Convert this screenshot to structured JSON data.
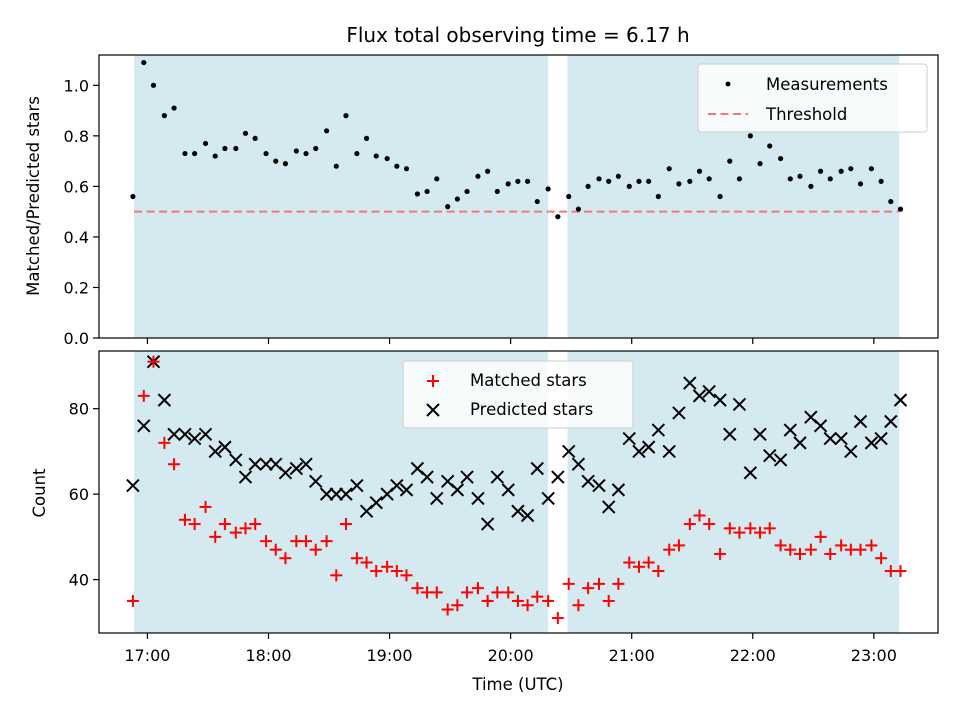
{
  "chart_data": {
    "title": "Flux total observing time = 6.17 h",
    "xlabel": "Time (UTC)",
    "x_ticks": [
      "17:00",
      "18:00",
      "19:00",
      "20:00",
      "21:00",
      "22:00",
      "23:00"
    ],
    "x_tick_hours": [
      17,
      18,
      19,
      20,
      21,
      22,
      23
    ],
    "xlim_hours": [
      16.6,
      23.53
    ],
    "shaded_intervals_hours": [
      [
        16.89,
        20.31
      ],
      [
        20.47,
        23.21
      ]
    ],
    "shade_color": "#d4eaf0",
    "panels": [
      {
        "type": "scatter",
        "ylabel": "Matched/Predicted stars",
        "ylim": [
          0,
          1.12
        ],
        "y_ticks": [
          "0.0",
          "0.2",
          "0.4",
          "0.6",
          "0.8",
          "1.0"
        ],
        "y_tick_values": [
          0,
          0.2,
          0.4,
          0.6,
          0.8,
          1.0
        ],
        "threshold": 0.5,
        "legend": [
          "Measurements",
          "Threshold"
        ],
        "colors": {
          "measurements": "#000000",
          "threshold": "#f07878"
        },
        "series": [
          {
            "name": "Measurements",
            "x_hours": [
              16.88,
              16.97,
              17.05,
              17.14,
              17.22,
              17.31,
              17.39,
              17.48,
              17.56,
              17.64,
              17.73,
              17.81,
              17.89,
              17.98,
              18.06,
              18.14,
              18.23,
              18.31,
              18.39,
              18.48,
              18.56,
              18.64,
              18.73,
              18.81,
              18.89,
              18.98,
              19.06,
              19.14,
              19.23,
              19.31,
              19.39,
              19.48,
              19.56,
              19.64,
              19.73,
              19.81,
              19.89,
              19.98,
              20.06,
              20.14,
              20.22,
              20.31,
              20.39,
              20.48,
              20.56,
              20.64,
              20.73,
              20.81,
              20.89,
              20.98,
              21.06,
              21.14,
              21.22,
              21.31,
              21.39,
              21.48,
              21.56,
              21.64,
              21.73,
              21.81,
              21.89,
              21.98,
              22.06,
              22.14,
              22.23,
              22.31,
              22.39,
              22.48,
              22.56,
              22.64,
              22.73,
              22.81,
              22.89,
              22.98,
              23.06,
              23.14,
              23.22
            ],
            "values": [
              0.56,
              1.09,
              1.0,
              0.88,
              0.91,
              0.73,
              0.73,
              0.77,
              0.72,
              0.75,
              0.75,
              0.81,
              0.79,
              0.73,
              0.7,
              0.69,
              0.74,
              0.73,
              0.75,
              0.82,
              0.68,
              0.88,
              0.73,
              0.79,
              0.72,
              0.71,
              0.68,
              0.67,
              0.57,
              0.58,
              0.63,
              0.52,
              0.55,
              0.58,
              0.64,
              0.66,
              0.58,
              0.61,
              0.62,
              0.62,
              0.54,
              0.59,
              0.48,
              0.56,
              0.51,
              0.6,
              0.63,
              0.62,
              0.64,
              0.6,
              0.62,
              0.62,
              0.56,
              0.67,
              0.61,
              0.62,
              0.66,
              0.63,
              0.56,
              0.7,
              0.63,
              0.8,
              0.69,
              0.76,
              0.71,
              0.63,
              0.64,
              0.6,
              0.66,
              0.63,
              0.66,
              0.67,
              0.61,
              0.67,
              0.62,
              0.54,
              0.51
            ]
          }
        ]
      },
      {
        "type": "scatter",
        "ylabel": "Count",
        "ylim": [
          27.5,
          93.5
        ],
        "y_ticks": [
          "40",
          "60",
          "80"
        ],
        "y_tick_values": [
          40,
          60,
          80
        ],
        "legend": [
          "Matched stars",
          "Predicted stars"
        ],
        "colors": {
          "matched": "#ff0000",
          "predicted": "#000000"
        },
        "series": [
          {
            "name": "Matched stars",
            "x_hours": [
              16.88,
              16.97,
              17.05,
              17.14,
              17.22,
              17.31,
              17.39,
              17.48,
              17.56,
              17.64,
              17.73,
              17.81,
              17.89,
              17.98,
              18.06,
              18.14,
              18.23,
              18.31,
              18.39,
              18.48,
              18.56,
              18.64,
              18.73,
              18.81,
              18.89,
              18.98,
              19.06,
              19.14,
              19.23,
              19.31,
              19.39,
              19.48,
              19.56,
              19.64,
              19.73,
              19.81,
              19.89,
              19.98,
              20.06,
              20.14,
              20.22,
              20.31,
              20.39,
              20.48,
              20.56,
              20.64,
              20.73,
              20.81,
              20.89,
              20.98,
              21.06,
              21.14,
              21.22,
              21.31,
              21.39,
              21.48,
              21.56,
              21.64,
              21.73,
              21.81,
              21.89,
              21.98,
              22.06,
              22.14,
              22.23,
              22.31,
              22.39,
              22.48,
              22.56,
              22.64,
              22.73,
              22.81,
              22.89,
              22.98,
              23.06,
              23.14,
              23.22
            ],
            "values": [
              35,
              83,
              91,
              72,
              67,
              54,
              53,
              57,
              50,
              53,
              51,
              52,
              53,
              49,
              47,
              45,
              49,
              49,
              47,
              49,
              41,
              53,
              45,
              44,
              42,
              43,
              42,
              41,
              38,
              37,
              37,
              33,
              34,
              37,
              38,
              35,
              37,
              37,
              35,
              34,
              36,
              35,
              31,
              39,
              34,
              38,
              39,
              35,
              39,
              44,
              43,
              44,
              42,
              47,
              48,
              53,
              55,
              53,
              46,
              52,
              51,
              52,
              51,
              52,
              48,
              47,
              46,
              47,
              50,
              46,
              48,
              47,
              47,
              48,
              45,
              42,
              42
            ]
          },
          {
            "name": "Predicted stars",
            "x_hours": [
              16.88,
              16.97,
              17.05,
              17.14,
              17.22,
              17.31,
              17.39,
              17.48,
              17.56,
              17.64,
              17.73,
              17.81,
              17.89,
              17.98,
              18.06,
              18.14,
              18.23,
              18.31,
              18.39,
              18.48,
              18.56,
              18.64,
              18.73,
              18.81,
              18.89,
              18.98,
              19.06,
              19.14,
              19.23,
              19.31,
              19.39,
              19.48,
              19.56,
              19.64,
              19.73,
              19.81,
              19.89,
              19.98,
              20.06,
              20.14,
              20.22,
              20.31,
              20.39,
              20.48,
              20.56,
              20.64,
              20.73,
              20.81,
              20.89,
              20.98,
              21.06,
              21.14,
              21.22,
              21.31,
              21.39,
              21.48,
              21.56,
              21.64,
              21.73,
              21.81,
              21.89,
              21.98,
              22.06,
              22.14,
              22.23,
              22.31,
              22.39,
              22.48,
              22.56,
              22.64,
              22.73,
              22.81,
              22.89,
              22.98,
              23.06,
              23.14,
              23.22
            ],
            "values": [
              62,
              76,
              91,
              82,
              74,
              74,
              73,
              74,
              70,
              71,
              68,
              64,
              67,
              67,
              67,
              65,
              66,
              67,
              63,
              60,
              60,
              60,
              62,
              56,
              58,
              60,
              62,
              61,
              66,
              64,
              59,
              63,
              61,
              64,
              59,
              53,
              64,
              61,
              56,
              55,
              66,
              59,
              64,
              70,
              67,
              63,
              62,
              57,
              61,
              73,
              70,
              71,
              75,
              70,
              79,
              86,
              83,
              84,
              82,
              74,
              81,
              65,
              74,
              69,
              68,
              75,
              72,
              78,
              76,
              73,
              73,
              70,
              77,
              72,
              73,
              77,
              82
            ]
          }
        ]
      }
    ]
  }
}
